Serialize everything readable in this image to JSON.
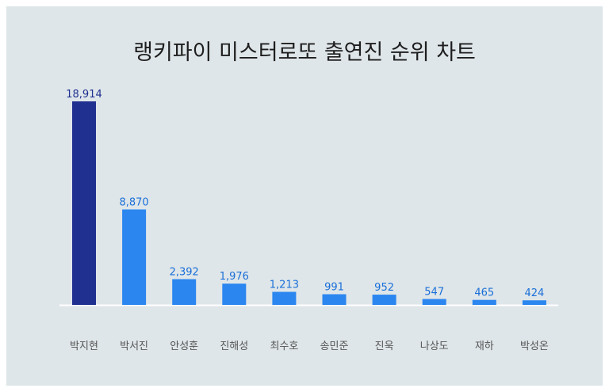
{
  "colors": {
    "background": "#dfe6e9",
    "highlight_bar": "#203090",
    "bar": "#2b86f0",
    "highlight_label": "#203090",
    "label": "#1a6fd8",
    "axis": "#ffffff"
  },
  "chart_data": {
    "type": "bar",
    "title": "랭키파이 미스터로또 출연진 순위 차트",
    "categories": [
      "박지현",
      "박서진",
      "안성훈",
      "진해성",
      "최수호",
      "송민준",
      "진욱",
      "나상도",
      "재하",
      "박성온"
    ],
    "values": [
      18914,
      8870,
      2392,
      1976,
      1213,
      991,
      952,
      547,
      465,
      424
    ],
    "value_labels": [
      "18,914",
      "8,870",
      "2,392",
      "1,976",
      "1,213",
      "991",
      "952",
      "547",
      "465",
      "424"
    ],
    "xlabel": "",
    "ylabel": "",
    "ylim": [
      0,
      18914
    ],
    "grid": false,
    "legend": "none"
  }
}
